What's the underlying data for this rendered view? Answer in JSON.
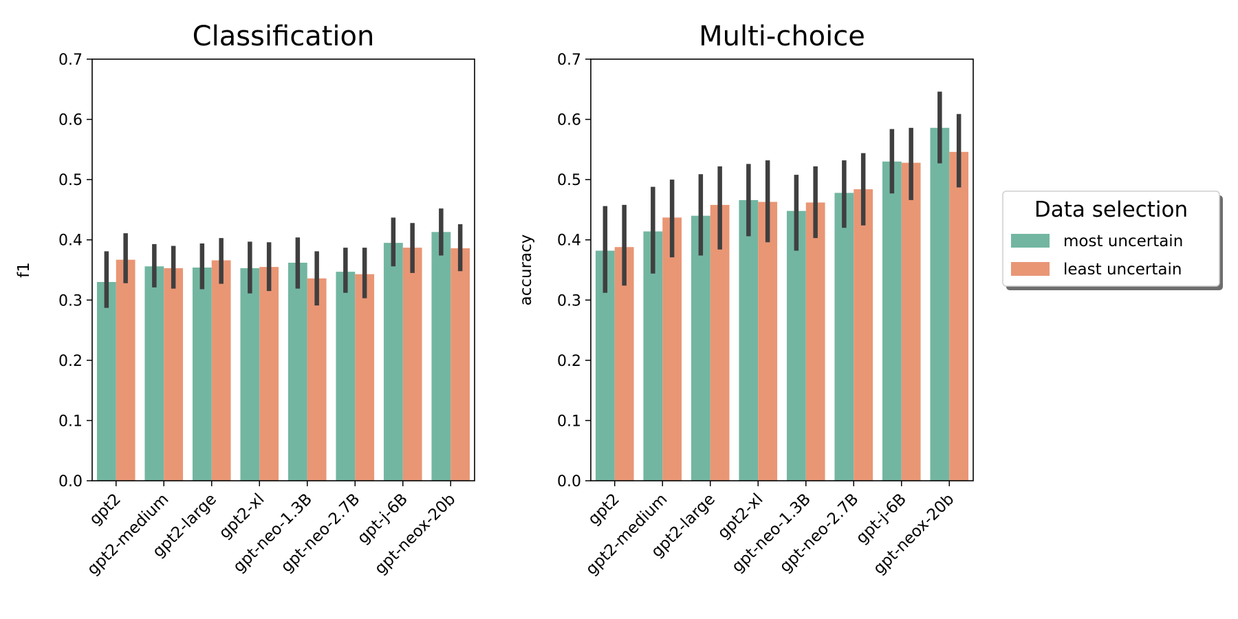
{
  "categories": [
    "gpt2",
    "gpt2-medium",
    "gpt2-large",
    "gpt2-xl",
    "gpt-neo-1.3B",
    "gpt-neo-2.7B",
    "gpt-j-6B",
    "gpt-neox-20b"
  ],
  "chart_data": [
    {
      "type": "bar",
      "title": "Classification",
      "xlabel": "",
      "ylabel": "f1",
      "ylim": [
        0,
        0.7
      ],
      "yticks": [
        "0.0",
        "0.1",
        "0.2",
        "0.3",
        "0.4",
        "0.5",
        "0.6",
        "0.7"
      ],
      "categories": [
        "gpt2",
        "gpt2-medium",
        "gpt2-large",
        "gpt2-xl",
        "gpt-neo-1.3B",
        "gpt-neo-2.7B",
        "gpt-j-6B",
        "gpt-neox-20b"
      ],
      "series": [
        {
          "name": "most uncertain",
          "color": "#72b6a1",
          "values": [
            0.33,
            0.356,
            0.354,
            0.353,
            0.362,
            0.347,
            0.395,
            0.413
          ],
          "ci": [
            [
              0.287,
              0.381
            ],
            [
              0.321,
              0.393
            ],
            [
              0.318,
              0.394
            ],
            [
              0.311,
              0.397
            ],
            [
              0.319,
              0.404
            ],
            [
              0.312,
              0.387
            ],
            [
              0.356,
              0.437
            ],
            [
              0.374,
              0.452
            ]
          ]
        },
        {
          "name": "least uncertain",
          "color": "#e99675",
          "values": [
            0.367,
            0.353,
            0.366,
            0.355,
            0.336,
            0.343,
            0.387,
            0.386
          ],
          "ci": [
            [
              0.328,
              0.411
            ],
            [
              0.319,
              0.39
            ],
            [
              0.327,
              0.403
            ],
            [
              0.315,
              0.396
            ],
            [
              0.291,
              0.381
            ],
            [
              0.303,
              0.387
            ],
            [
              0.345,
              0.428
            ],
            [
              0.348,
              0.426
            ]
          ]
        }
      ]
    },
    {
      "type": "bar",
      "title": "Multi-choice",
      "xlabel": "",
      "ylabel": "accuracy",
      "ylim": [
        0,
        0.7
      ],
      "yticks": [
        "0.0",
        "0.1",
        "0.2",
        "0.3",
        "0.4",
        "0.5",
        "0.6",
        "0.7"
      ],
      "categories": [
        "gpt2",
        "gpt2-medium",
        "gpt2-large",
        "gpt2-xl",
        "gpt-neo-1.3B",
        "gpt-neo-2.7B",
        "gpt-j-6B",
        "gpt-neox-20b"
      ],
      "series": [
        {
          "name": "most uncertain",
          "color": "#72b6a1",
          "values": [
            0.382,
            0.414,
            0.44,
            0.466,
            0.448,
            0.478,
            0.53,
            0.586
          ],
          "ci": [
            [
              0.312,
              0.456
            ],
            [
              0.344,
              0.488
            ],
            [
              0.374,
              0.509
            ],
            [
              0.406,
              0.526
            ],
            [
              0.382,
              0.508
            ],
            [
              0.42,
              0.532
            ],
            [
              0.477,
              0.584
            ],
            [
              0.527,
              0.646
            ]
          ]
        },
        {
          "name": "least uncertain",
          "color": "#e99675",
          "values": [
            0.388,
            0.437,
            0.458,
            0.463,
            0.462,
            0.484,
            0.528,
            0.546
          ],
          "ci": [
            [
              0.324,
              0.458
            ],
            [
              0.371,
              0.5
            ],
            [
              0.384,
              0.522
            ],
            [
              0.396,
              0.532
            ],
            [
              0.403,
              0.522
            ],
            [
              0.424,
              0.544
            ],
            [
              0.466,
              0.586
            ],
            [
              0.487,
              0.609
            ]
          ]
        }
      ]
    }
  ],
  "legend": {
    "title": "Data selection",
    "placement": "right",
    "items": [
      {
        "label": "most uncertain",
        "color": "#72b6a1"
      },
      {
        "label": "least uncertain",
        "color": "#e99675"
      }
    ]
  }
}
